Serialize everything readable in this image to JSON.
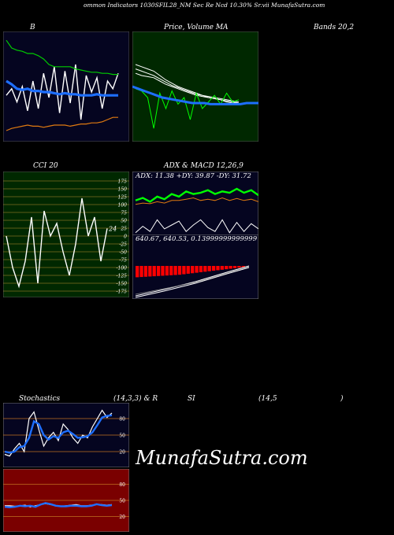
{
  "header": {
    "title": "ommon  Indicators 1030SFIL28_NM Sec Re   Ncd 10.30% Sr.vii  MunafaSutra.com"
  },
  "labels": {
    "b": "B",
    "price": "Price,  Volume  MA",
    "bands": "Bands 20,2",
    "cci": "CCI 20",
    "adx_macd": "ADX  & MACD 12,26,9",
    "adx_line": "ADX: 11.38  +DY: 39.87 -DY: 31.72",
    "macd_line": "640.67,  640.53,  0.13999999999999",
    "stoch_a": "Stochastics",
    "stoch_b": "(14,3,3) & R",
    "stoch_c": "SI",
    "stoch_d": "(14,5",
    "stoch_e": ")"
  },
  "watermark": "MunafaSutra.com",
  "colors": {
    "dark_navy": "#050520",
    "dark_green": "#002800",
    "dark_red": "#7a0000",
    "blue": "#1e6fff",
    "green": "#00cc00",
    "orange": "#e07a10",
    "red": "#ff0000",
    "grid_orange": "#c07020"
  },
  "chart_data": [
    {
      "type": "line",
      "name": "bollinger",
      "series": [
        {
          "color": "#ffffff",
          "values": [
            0.42,
            0.48,
            0.36,
            0.5,
            0.28,
            0.55,
            0.3,
            0.62,
            0.4,
            0.68,
            0.26,
            0.64,
            0.35,
            0.7,
            0.2,
            0.6,
            0.45,
            0.58,
            0.3,
            0.55,
            0.48,
            0.62
          ]
        },
        {
          "color": "#1e6fff",
          "values": [
            0.55,
            0.52,
            0.48,
            0.47,
            0.48,
            0.46,
            0.46,
            0.45,
            0.45,
            0.44,
            0.43,
            0.44,
            0.43,
            0.43,
            0.42,
            0.42,
            0.42,
            0.43,
            0.42,
            0.42,
            0.42,
            0.42
          ]
        },
        {
          "color": "#00cc00",
          "values": [
            0.92,
            0.85,
            0.83,
            0.82,
            0.8,
            0.8,
            0.78,
            0.75,
            0.7,
            0.68,
            0.68,
            0.68,
            0.68,
            0.66,
            0.65,
            0.64,
            0.63,
            0.63,
            0.62,
            0.62,
            0.61,
            0.61
          ]
        },
        {
          "color": "#e07a10",
          "values": [
            0.1,
            0.12,
            0.13,
            0.14,
            0.15,
            0.14,
            0.14,
            0.13,
            0.14,
            0.15,
            0.15,
            0.15,
            0.14,
            0.15,
            0.16,
            0.16,
            0.17,
            0.17,
            0.18,
            0.2,
            0.22,
            0.22
          ]
        }
      ]
    },
    {
      "type": "line",
      "name": "price-ma",
      "series": [
        {
          "color": "#ffffff",
          "values": [
            0.7,
            0.68,
            0.66,
            0.64,
            0.6,
            0.56,
            0.53,
            0.5,
            0.48,
            0.46,
            0.44,
            0.42,
            0.41,
            0.4,
            0.39,
            0.38,
            0.37,
            0.36
          ]
        },
        {
          "color": "#ffffff",
          "values": [
            0.66,
            0.64,
            0.62,
            0.6,
            0.57,
            0.54,
            0.51,
            0.49,
            0.47,
            0.45,
            0.43,
            0.42,
            0.4,
            0.39,
            0.38,
            0.37,
            0.36,
            0.35
          ]
        },
        {
          "color": "#ffffff",
          "values": [
            0.62,
            0.6,
            0.59,
            0.58,
            0.55,
            0.52,
            0.5,
            0.48,
            0.46,
            0.44,
            0.42,
            0.41,
            0.4,
            0.39,
            0.38,
            0.36,
            0.35,
            0.35
          ]
        },
        {
          "color": "#00ff00",
          "values": [
            0.48,
            0.46,
            0.4,
            0.12,
            0.44,
            0.3,
            0.46,
            0.34,
            0.4,
            0.2,
            0.44,
            0.3,
            0.36,
            0.42,
            0.34,
            0.44,
            0.36,
            0.38
          ]
        },
        {
          "color": "#1e6fff",
          "values": [
            0.5,
            0.48,
            0.46,
            0.44,
            0.42,
            0.4,
            0.39,
            0.38,
            0.37,
            0.36,
            0.35,
            0.35,
            0.35,
            0.34,
            0.34,
            0.34,
            0.34,
            0.34,
            0.34,
            0.35,
            0.35,
            0.35
          ]
        }
      ]
    },
    {
      "type": "line",
      "name": "cci",
      "ticks": [
        "175",
        "150",
        "125",
        "100",
        "75",
        "50",
        "25",
        "0",
        "-25",
        "-50",
        "-75",
        "-100",
        "-125",
        "-150",
        "-175"
      ],
      "last_value": "24",
      "series": [
        {
          "color": "#ffffff",
          "values": [
            0,
            -100,
            -160,
            -80,
            60,
            -150,
            80,
            0,
            40,
            -50,
            -125,
            -25,
            120,
            0,
            60,
            -80,
            24
          ]
        }
      ]
    },
    {
      "type": "line",
      "name": "adx",
      "series": [
        {
          "color": "#00ff00",
          "values": [
            0.6,
            0.64,
            0.58,
            0.66,
            0.62,
            0.7,
            0.66,
            0.74,
            0.7,
            0.72,
            0.76,
            0.7,
            0.74,
            0.72,
            0.78,
            0.72,
            0.76,
            0.68
          ]
        },
        {
          "color": "#e07a10",
          "values": [
            0.54,
            0.56,
            0.55,
            0.58,
            0.56,
            0.6,
            0.6,
            0.62,
            0.64,
            0.6,
            0.62,
            0.6,
            0.64,
            0.6,
            0.63,
            0.6,
            0.62,
            0.58
          ]
        },
        {
          "color": "#ffffff",
          "values": [
            0.1,
            0.2,
            0.12,
            0.3,
            0.16,
            0.22,
            0.28,
            0.12,
            0.22,
            0.3,
            0.18,
            0.12,
            0.3,
            0.1,
            0.26,
            0.12,
            0.24,
            0.16
          ]
        }
      ]
    },
    {
      "type": "bar",
      "name": "macd-histogram",
      "values": [
        0.9,
        0.88,
        0.86,
        0.84,
        0.82,
        0.8,
        0.78,
        0.76,
        0.74,
        0.72,
        0.7,
        0.66,
        0.62,
        0.58,
        0.54,
        0.5,
        0.46,
        0.42,
        0.38,
        0.34,
        0.3,
        0.26,
        0.22,
        0.18,
        0.14,
        0.1
      ]
    },
    {
      "type": "line",
      "name": "stochastics",
      "ticks": [
        "80",
        "50",
        "20"
      ],
      "series": [
        {
          "color": "#ffffff",
          "values": [
            15,
            12,
            25,
            35,
            20,
            80,
            92,
            60,
            30,
            45,
            55,
            40,
            70,
            60,
            45,
            35,
            50,
            45,
            65,
            80,
            95,
            82,
            90
          ]
        },
        {
          "color": "#1e6fff",
          "values": [
            20,
            18,
            20,
            28,
            30,
            45,
            75,
            70,
            50,
            42,
            48,
            45,
            55,
            58,
            52,
            45,
            46,
            48,
            55,
            68,
            82,
            85,
            86
          ]
        }
      ]
    },
    {
      "type": "line",
      "name": "rsi",
      "ticks": [
        "80",
        "50",
        "20"
      ],
      "series": [
        {
          "color": "#ffffff",
          "values": [
            40,
            40,
            39,
            40,
            41,
            38,
            40,
            42,
            44,
            42,
            40,
            39,
            40,
            41,
            42,
            40,
            40,
            41,
            42,
            42,
            41,
            42
          ]
        },
        {
          "color": "#1e6fff",
          "values": [
            38,
            37,
            38,
            40,
            39,
            40,
            38,
            42,
            45,
            43,
            40,
            39,
            39,
            40,
            40,
            39,
            39,
            40,
            43,
            41,
            40,
            41
          ]
        }
      ]
    }
  ]
}
